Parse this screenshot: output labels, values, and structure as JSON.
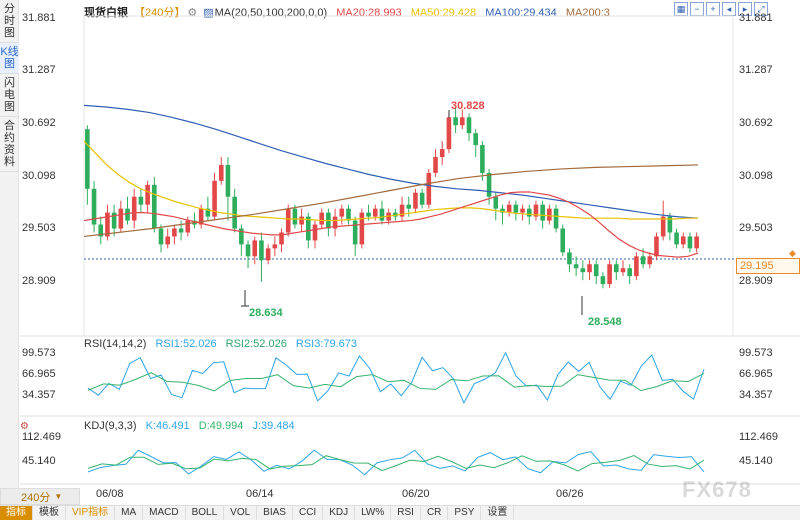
{
  "side_tabs": [
    "分时图",
    "K线图",
    "闪电图",
    "合约资料"
  ],
  "side_active": 1,
  "period_selector": "240分",
  "legend": {
    "title": "现货白银",
    "period": "【240分】",
    "settings_icon": "gear-icon",
    "ma": "MA(20,50,100,200,0,0)",
    "ma20": "MA20:28.993",
    "ma50": "MA50:29.428",
    "ma100": "MA100:29.434",
    "ma200": "MA200:3"
  },
  "tools": [
    "grid-icon",
    "zoom-out-icon",
    "zoom-in-icon",
    "left-icon",
    "right-icon",
    "fullscreen-icon"
  ],
  "price_axis": [
    "31.881",
    "31.287",
    "30.692",
    "30.098",
    "29.503",
    "28.909"
  ],
  "current_price": "29.195",
  "annotations": {
    "high": "30.828",
    "low1": "28.634",
    "low2": "28.548"
  },
  "rsi": {
    "label": "RSI(14,14,2)",
    "rsi1": "RSI1:52.026",
    "rsi2": "RSI2:52.026",
    "rsi3": "RSI3:79.673",
    "axis": [
      "99.573",
      "66.965",
      "34.357"
    ]
  },
  "kdj": {
    "label": "KDJ(9,3,3)",
    "k": "K:46.491",
    "d": "D:49.994",
    "j": "J:39.484",
    "axis": [
      "112.469",
      "45.140"
    ]
  },
  "dates": [
    "06/08",
    "06/14",
    "06/20",
    "06/26"
  ],
  "watermark": "FX678",
  "bottom_tabs": [
    "指标",
    "模板",
    "VIP指标",
    "MA",
    "MACD",
    "BOLL",
    "VOL",
    "BIAS",
    "CCI",
    "KDJ",
    "LW%",
    "RSI",
    "CR",
    "PSY",
    "设置"
  ],
  "bottom_active": 0,
  "colors": {
    "up": "#e24848",
    "down": "#2eae5c",
    "ma20": "#e24848",
    "ma50": "#e8c200",
    "ma100": "#2f5fb3",
    "ma200": "#a36a3c",
    "accent": "#d98d00"
  },
  "chart_data": {
    "type": "candlestick",
    "ylim": [
      28.4,
      31.95
    ],
    "candles": [
      [
        30.55,
        29.8,
        30.6,
        29.6
      ],
      [
        29.8,
        29.35,
        29.9,
        29.25
      ],
      [
        29.35,
        29.2,
        29.45,
        29.1
      ],
      [
        29.2,
        29.5,
        29.6,
        29.15
      ],
      [
        29.5,
        29.3,
        29.6,
        29.2
      ],
      [
        29.3,
        29.55,
        29.65,
        29.25
      ],
      [
        29.55,
        29.4,
        29.7,
        29.35
      ],
      [
        29.4,
        29.7,
        29.8,
        29.3
      ],
      [
        29.7,
        29.6,
        29.8,
        29.5
      ],
      [
        29.6,
        29.85,
        29.9,
        29.5
      ],
      [
        29.85,
        29.3,
        29.95,
        29.25
      ],
      [
        29.3,
        29.1,
        29.35,
        29.0
      ],
      [
        29.1,
        29.2,
        29.3,
        29.05
      ],
      [
        29.2,
        29.3,
        29.35,
        29.1
      ],
      [
        29.3,
        29.25,
        29.4,
        29.15
      ],
      [
        29.25,
        29.4,
        29.45,
        29.2
      ],
      [
        29.4,
        29.35,
        29.5,
        29.3
      ],
      [
        29.35,
        29.55,
        29.6,
        29.3
      ],
      [
        29.55,
        29.45,
        29.7,
        29.4
      ],
      [
        29.45,
        29.9,
        30.0,
        29.4
      ],
      [
        29.9,
        30.1,
        30.2,
        29.85
      ],
      [
        30.1,
        29.7,
        30.2,
        29.4
      ],
      [
        29.7,
        29.3,
        29.8,
        29.25
      ],
      [
        29.3,
        29.1,
        29.35,
        28.95
      ],
      [
        29.1,
        28.95,
        29.15,
        28.8
      ],
      [
        28.95,
        29.15,
        29.2,
        28.85
      ],
      [
        29.15,
        28.9,
        29.25,
        28.63
      ],
      [
        28.9,
        29.05,
        29.1,
        28.85
      ],
      [
        29.05,
        29.1,
        29.2,
        28.95
      ],
      [
        29.1,
        29.25,
        29.3,
        29.0
      ],
      [
        29.25,
        29.55,
        29.6,
        29.2
      ],
      [
        29.55,
        29.35,
        29.6,
        29.3
      ],
      [
        29.35,
        29.45,
        29.55,
        29.25
      ],
      [
        29.45,
        29.15,
        29.5,
        29.05
      ],
      [
        29.15,
        29.35,
        29.4,
        29.05
      ],
      [
        29.35,
        29.5,
        29.55,
        29.3
      ],
      [
        29.5,
        29.3,
        29.55,
        29.2
      ],
      [
        29.3,
        29.45,
        29.55,
        29.2
      ],
      [
        29.45,
        29.55,
        29.6,
        29.35
      ],
      [
        29.55,
        29.4,
        29.6,
        29.35
      ],
      [
        29.4,
        29.1,
        29.45,
        28.95
      ],
      [
        29.1,
        29.5,
        29.55,
        29.05
      ],
      [
        29.5,
        29.45,
        29.6,
        29.4
      ],
      [
        29.45,
        29.55,
        29.6,
        29.4
      ],
      [
        29.55,
        29.4,
        29.65,
        29.35
      ],
      [
        29.4,
        29.5,
        29.55,
        29.35
      ],
      [
        29.5,
        29.45,
        29.55,
        29.4
      ],
      [
        29.45,
        29.6,
        29.7,
        29.4
      ],
      [
        29.6,
        29.55,
        29.7,
        29.45
      ],
      [
        29.55,
        29.75,
        29.8,
        29.5
      ],
      [
        29.75,
        29.6,
        29.8,
        29.55
      ],
      [
        29.6,
        30.0,
        30.05,
        29.55
      ],
      [
        30.0,
        30.2,
        30.3,
        29.95
      ],
      [
        30.2,
        30.3,
        30.4,
        30.1
      ],
      [
        30.3,
        30.7,
        30.75,
        30.25
      ],
      [
        30.7,
        30.6,
        30.83,
        30.5
      ],
      [
        30.6,
        30.7,
        30.8,
        30.55
      ],
      [
        30.7,
        30.5,
        30.75,
        30.4
      ],
      [
        30.5,
        30.35,
        30.55,
        30.2
      ],
      [
        30.35,
        30.0,
        30.4,
        29.9
      ],
      [
        30.0,
        29.7,
        30.05,
        29.6
      ],
      [
        29.7,
        29.55,
        29.75,
        29.4
      ],
      [
        29.55,
        29.5,
        29.6,
        29.35
      ],
      [
        29.5,
        29.6,
        29.65,
        29.45
      ],
      [
        29.6,
        29.5,
        29.65,
        29.4
      ],
      [
        29.5,
        29.55,
        29.6,
        29.4
      ],
      [
        29.55,
        29.45,
        29.6,
        29.35
      ],
      [
        29.45,
        29.6,
        29.65,
        29.4
      ],
      [
        29.6,
        29.4,
        29.65,
        29.3
      ],
      [
        29.4,
        29.55,
        29.6,
        29.35
      ],
      [
        29.55,
        29.3,
        29.6,
        29.25
      ],
      [
        29.3,
        29.0,
        29.35,
        28.95
      ],
      [
        29.0,
        28.85,
        29.05,
        28.75
      ],
      [
        28.85,
        28.8,
        28.95,
        28.7
      ],
      [
        28.8,
        28.75,
        28.9,
        28.65
      ],
      [
        28.75,
        28.85,
        28.9,
        28.65
      ],
      [
        28.85,
        28.7,
        28.9,
        28.6
      ],
      [
        28.7,
        28.6,
        28.75,
        28.548
      ],
      [
        28.6,
        28.85,
        28.9,
        28.55
      ],
      [
        28.85,
        28.75,
        28.9,
        28.65
      ],
      [
        28.75,
        28.8,
        28.9,
        28.7
      ],
      [
        28.8,
        28.7,
        28.85,
        28.6
      ],
      [
        28.7,
        28.95,
        29.0,
        28.65
      ],
      [
        28.95,
        28.85,
        29.05,
        28.8
      ],
      [
        28.85,
        28.95,
        29.0,
        28.8
      ],
      [
        28.95,
        29.2,
        29.25,
        28.9
      ],
      [
        29.2,
        29.45,
        29.65,
        29.15
      ],
      [
        29.45,
        29.25,
        29.5,
        29.15
      ],
      [
        29.25,
        29.1,
        29.3,
        29.05
      ],
      [
        29.1,
        29.2,
        29.25,
        29.05
      ],
      [
        29.2,
        29.05,
        29.25,
        29.0
      ],
      [
        29.05,
        29.2,
        29.25,
        29.0
      ]
    ],
    "ma20": [
      29.4,
      29.42,
      29.44,
      29.46,
      29.48,
      29.5,
      29.5,
      29.49,
      29.47,
      29.45,
      29.42,
      29.39,
      29.36,
      29.33,
      29.3,
      29.28,
      29.26,
      29.24,
      29.23,
      29.22,
      29.22,
      29.24,
      29.26,
      29.28,
      29.3,
      29.32,
      29.33,
      29.34,
      29.35,
      29.36,
      29.37,
      29.38,
      29.39,
      29.4,
      29.42,
      29.45,
      29.48,
      29.52,
      29.56,
      29.6,
      29.64,
      29.68,
      29.72,
      29.75,
      29.76,
      29.76,
      29.74,
      29.72,
      29.68,
      29.63,
      29.56,
      29.48,
      29.38,
      29.27,
      29.17,
      29.09,
      29.03,
      28.99,
      28.96,
      28.95,
      28.94,
      28.95,
      28.99
    ],
    "ma50": [
      30.4,
      30.25,
      30.1,
      29.98,
      29.88,
      29.8,
      29.74,
      29.69,
      29.64,
      29.6,
      29.56,
      29.53,
      29.5,
      29.48,
      29.46,
      29.45,
      29.44,
      29.43,
      29.42,
      29.42,
      29.41,
      29.4,
      29.4,
      29.41,
      29.42,
      29.43,
      29.44,
      29.46,
      29.48,
      29.5,
      29.52,
      29.54,
      29.55,
      29.56,
      29.56,
      29.55,
      29.53,
      29.51,
      29.49,
      29.48,
      29.47,
      29.46,
      29.45,
      29.44,
      29.43,
      29.43,
      29.43,
      29.43,
      29.42,
      29.42,
      29.42,
      29.42,
      29.42,
      29.43,
      29.43
    ],
    "ma100": [
      30.85,
      30.83,
      30.8,
      30.76,
      30.7,
      30.63,
      30.55,
      30.46,
      30.37,
      30.28,
      30.2,
      30.12,
      30.05,
      29.98,
      29.92,
      29.87,
      29.83,
      29.8,
      29.78,
      29.75,
      29.72,
      29.68,
      29.64,
      29.6,
      29.56,
      29.52,
      29.48,
      29.45,
      29.43
    ],
    "ma200": [
      29.2,
      29.25,
      29.3,
      29.36,
      29.42,
      29.48,
      29.55,
      29.62,
      29.7,
      29.78,
      29.86,
      29.93,
      29.98,
      30.02,
      30.05,
      30.07,
      30.08,
      30.09,
      30.1
    ]
  }
}
